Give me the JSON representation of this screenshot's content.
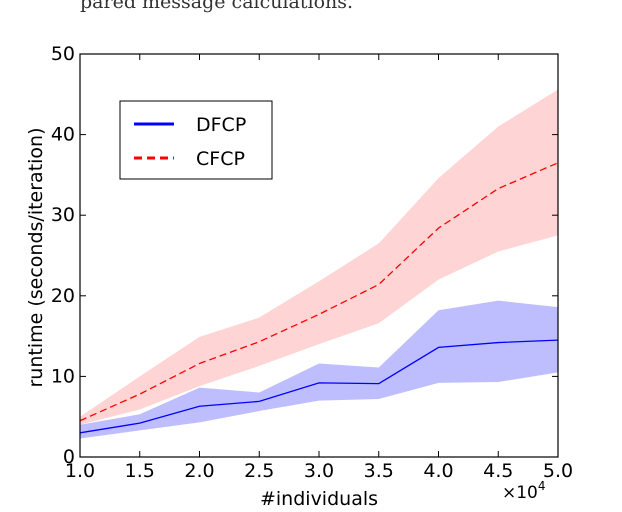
{
  "caption_fragment": "pared message calculations.",
  "chart_data": {
    "type": "line",
    "xlabel": "#individuals",
    "ylabel": "runtime (seconds/iteration)",
    "x_multiplier": "×10",
    "x_multiplier_exp": "4",
    "xlim": [
      1.0,
      5.0
    ],
    "ylim": [
      0,
      50
    ],
    "x": [
      1.0,
      1.5,
      2.0,
      2.5,
      3.0,
      3.5,
      4.0,
      4.5,
      5.0
    ],
    "x_tick_labels": [
      "1.0",
      "1.5",
      "2.0",
      "2.5",
      "3.0",
      "3.5",
      "4.0",
      "4.5",
      "5.0"
    ],
    "y_ticks": [
      0,
      10,
      20,
      30,
      40,
      50
    ],
    "y_tick_labels": [
      "0",
      "10",
      "20",
      "30",
      "40",
      "50"
    ],
    "grid": false,
    "legend_position": "top-left",
    "series": [
      {
        "name": "DFCP",
        "color": "#0000ff",
        "band_color": "#b3b3ff",
        "line_style": "solid",
        "values": [
          3.0,
          4.2,
          6.3,
          6.9,
          9.2,
          9.1,
          13.6,
          14.2,
          14.5
        ],
        "upper": [
          4.0,
          5.3,
          8.6,
          8.0,
          11.6,
          11.1,
          18.2,
          19.4,
          18.6
        ],
        "lower": [
          2.3,
          3.3,
          4.3,
          5.7,
          7.0,
          7.2,
          9.2,
          9.3,
          10.5
        ]
      },
      {
        "name": "CFCP",
        "color": "#ff0000",
        "band_color": "#ffcccc",
        "line_style": "dashed",
        "values": [
          4.5,
          7.8,
          11.6,
          14.3,
          17.7,
          21.4,
          28.4,
          33.3,
          36.5
        ],
        "upper": [
          5.0,
          10.0,
          14.9,
          17.3,
          21.8,
          26.5,
          34.6,
          41.0,
          45.6
        ],
        "lower": [
          4.0,
          5.9,
          8.8,
          11.3,
          14.0,
          16.6,
          22.0,
          25.5,
          27.5
        ]
      }
    ]
  }
}
